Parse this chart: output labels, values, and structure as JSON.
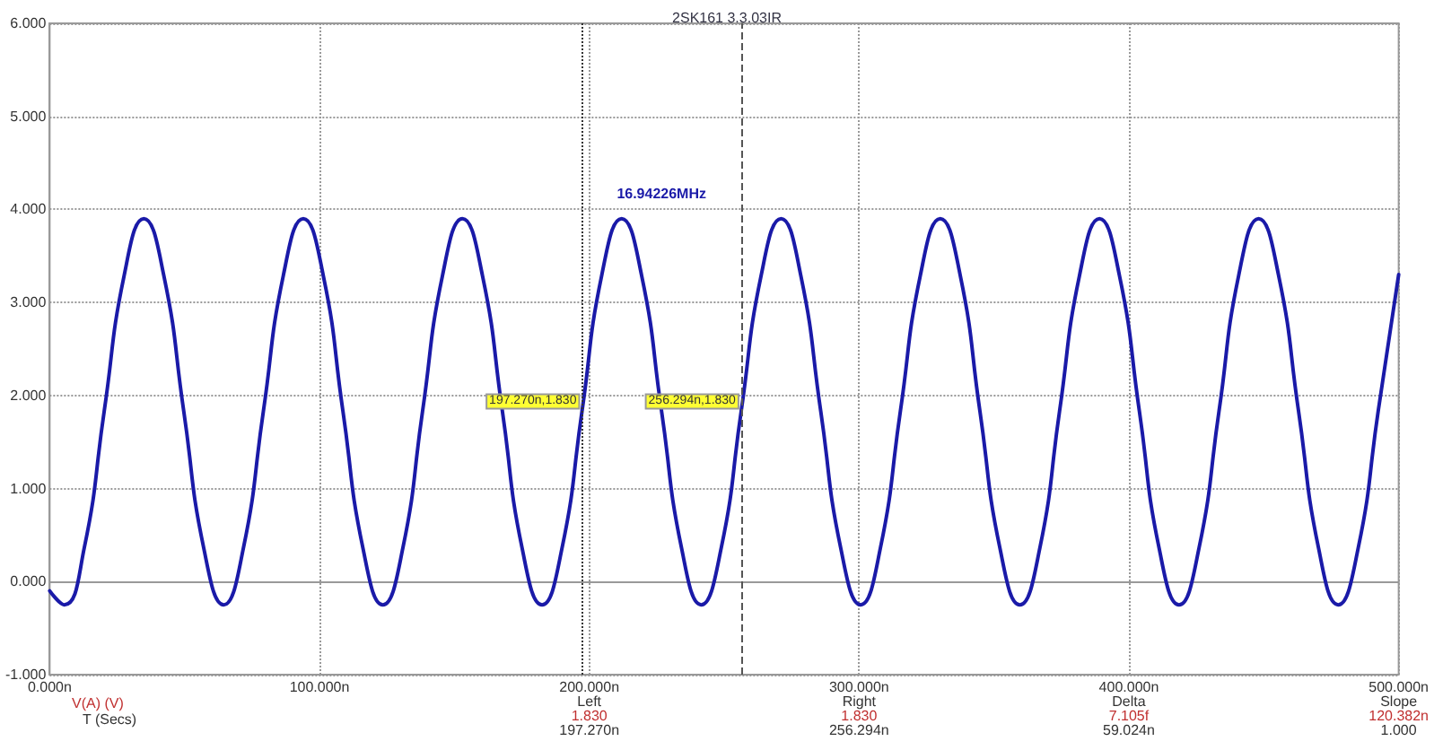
{
  "chart_data": {
    "type": "line",
    "subtitle": "2SK161 3.3.03IR",
    "xlabel": "T (Secs)",
    "x": [
      0,
      5.4,
      12.8,
      20.2,
      27.6,
      34.9,
      42.3,
      49.7,
      57.1,
      64.5,
      71.8,
      79.2,
      86.6,
      94.0,
      101.4,
      108.7,
      116.1,
      123.5,
      130.9,
      138.2,
      145.6,
      153.0,
      160.4,
      167.8,
      175.1,
      182.5,
      189.9,
      197.3,
      204.6,
      212.0,
      219.4,
      226.8,
      234.2,
      241.5,
      248.9,
      256.3,
      263.7,
      271.1,
      278.4,
      285.8,
      293.2,
      300.6,
      307.9,
      315.3,
      322.7,
      330.1,
      337.5,
      344.8,
      352.2,
      359.6,
      367.0,
      374.3,
      381.7,
      389.1,
      396.5,
      403.9,
      411.2,
      418.6,
      426.0,
      433.4,
      440.7,
      448.1,
      455.5,
      462.9,
      470.3,
      477.6,
      485.0,
      492.4,
      500
    ],
    "series": [
      {
        "color": "#1a1aa8",
        "values": [
          -0.1,
          -0.25,
          0.36,
          1.83,
          3.29,
          3.9,
          3.29,
          1.83,
          0.36,
          -0.25,
          0.36,
          1.83,
          3.29,
          3.9,
          3.29,
          1.83,
          0.36,
          -0.25,
          0.36,
          1.83,
          3.29,
          3.9,
          3.29,
          1.83,
          0.36,
          -0.25,
          0.36,
          1.83,
          3.29,
          3.9,
          3.29,
          1.83,
          0.36,
          -0.25,
          0.36,
          1.83,
          3.29,
          3.9,
          3.29,
          1.83,
          0.36,
          -0.25,
          0.36,
          1.83,
          3.29,
          3.9,
          3.29,
          1.83,
          0.36,
          -0.25,
          0.36,
          1.83,
          3.29,
          3.9,
          3.29,
          1.83,
          0.36,
          -0.25,
          0.36,
          1.83,
          3.29,
          3.9,
          3.29,
          1.83,
          0.36,
          -0.25,
          0.36,
          1.83,
          3.3
        ]
      }
    ],
    "xlim": [
      0,
      500
    ],
    "xticks": [
      {
        "value": 0,
        "label": "0.000n"
      },
      {
        "value": 100,
        "label": "100.000n"
      },
      {
        "value": 200,
        "label": "200.000n"
      },
      {
        "value": 300,
        "label": "300.000n"
      },
      {
        "value": 400,
        "label": "400.000n"
      },
      {
        "value": 500,
        "label": "500.000n"
      }
    ],
    "ylim": [
      -1,
      6
    ],
    "yticks": [
      {
        "value": -1,
        "label": "-1.000"
      },
      {
        "value": 0,
        "label": "0.000"
      },
      {
        "value": 1,
        "label": "1.000"
      },
      {
        "value": 2,
        "label": "2.000"
      },
      {
        "value": 3,
        "label": "3.000"
      },
      {
        "value": 4,
        "label": "4.000"
      },
      {
        "value": 5,
        "label": "5.000"
      },
      {
        "value": 6,
        "label": "6.000"
      }
    ],
    "grid": true,
    "marker": "none",
    "line_style": "solid",
    "ref_lines": [
      {
        "axis": "x",
        "value": 197.27,
        "color": "#333333",
        "line_style": "dotted"
      },
      {
        "axis": "x",
        "value": 256.294,
        "color": "#555555",
        "line_style": "dashed"
      }
    ],
    "annotations": [
      "16.94226MHz",
      "V(A) (V)",
      {
        "text": "197.270n,1.830",
        "x": 197.27,
        "y": 1.83
      },
      {
        "text": "256.294n,1.830",
        "x": 256.294,
        "y": 1.83
      },
      "Left",
      "1.830",
      "197.270n",
      "Right",
      "1.830",
      "256.294n",
      "Delta",
      "7.105f",
      "59.024n",
      "Slope",
      "120.382n",
      "1.000"
    ]
  }
}
